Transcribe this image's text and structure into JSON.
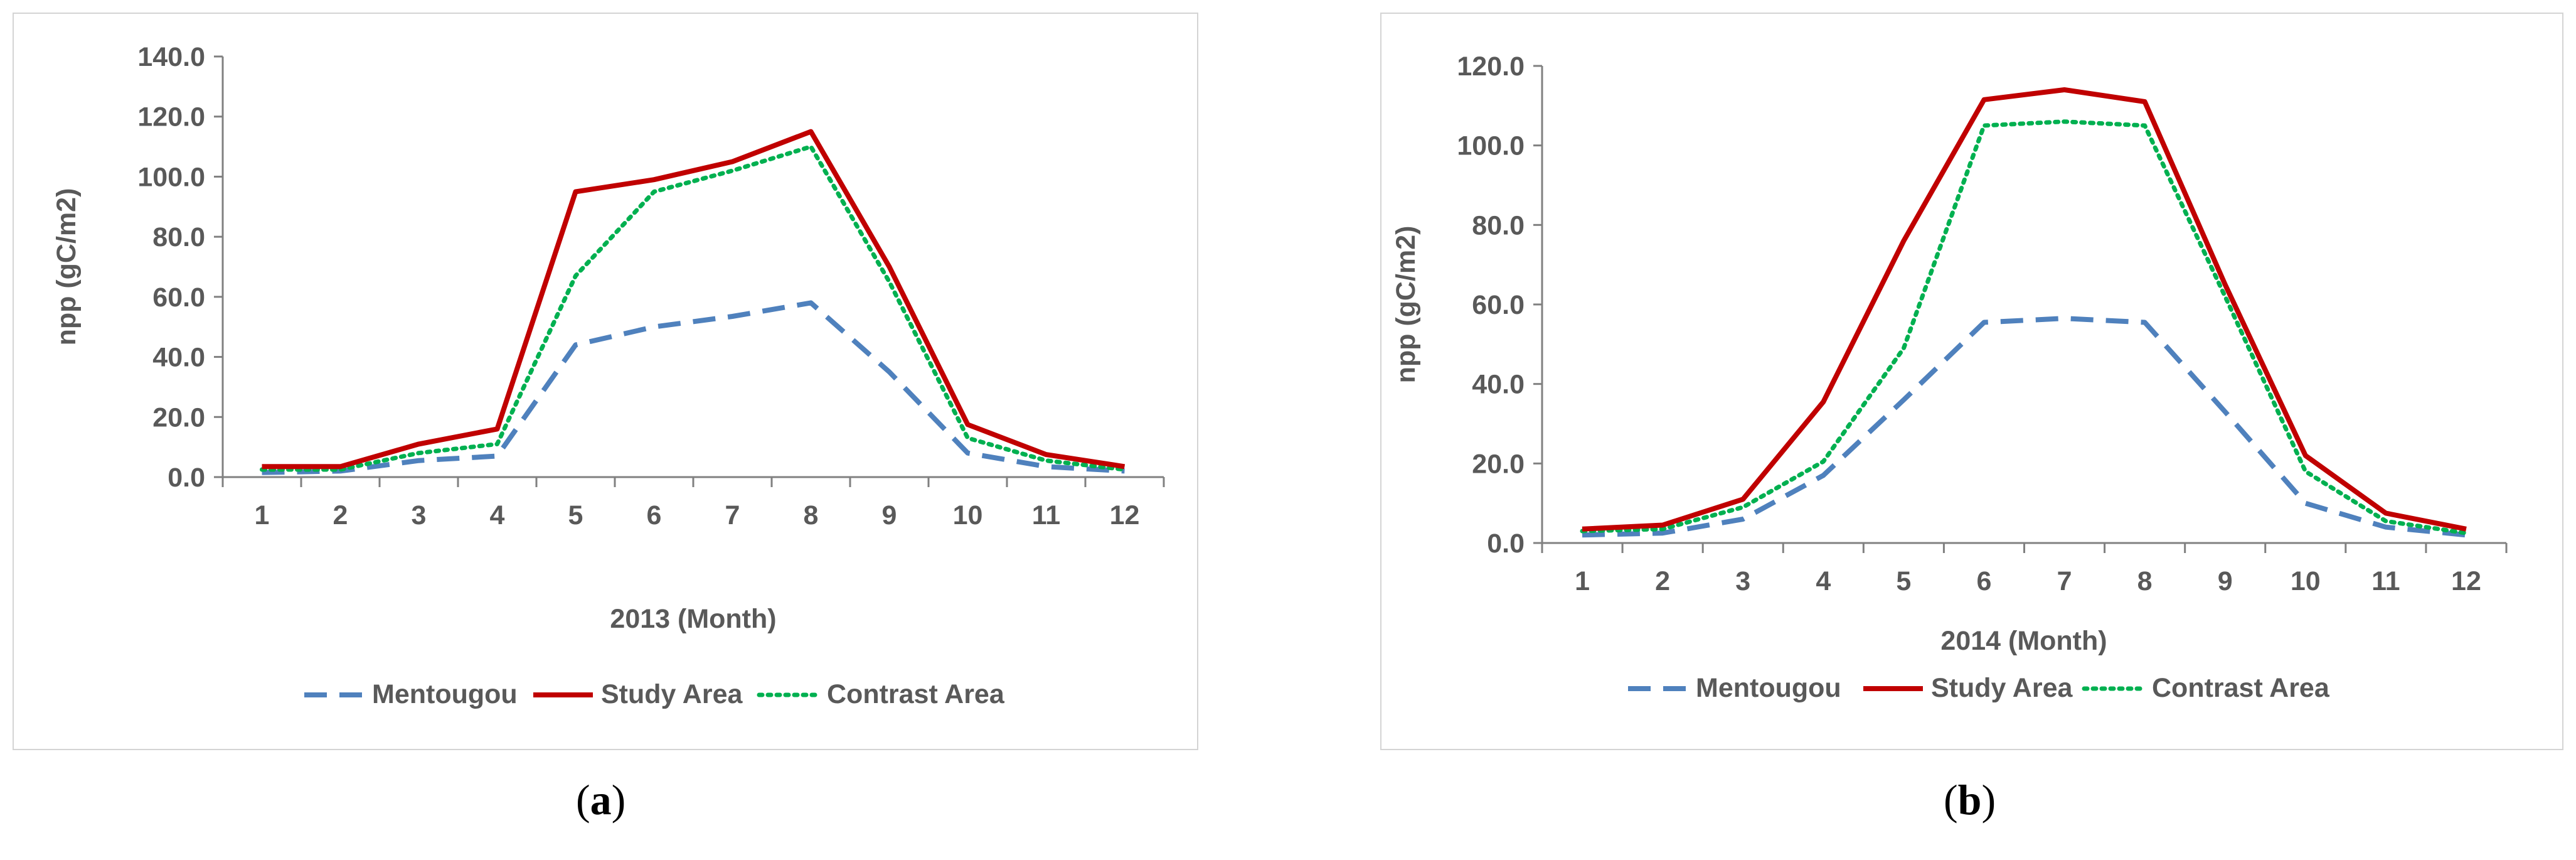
{
  "captions": {
    "a": "a",
    "b": "b"
  },
  "chart_data": [
    {
      "type": "line",
      "categories": [
        "1",
        "2",
        "3",
        "4",
        "5",
        "6",
        "7",
        "8",
        "9",
        "10",
        "11",
        "12"
      ],
      "xlabel": "2013 (Month)",
      "ylabel": "npp (gC/m2)",
      "ylim": [
        0,
        140
      ],
      "yticks": [
        "0.0",
        "20.0",
        "40.0",
        "60.0",
        "80.0",
        "100.0",
        "120.0",
        "140.0"
      ],
      "legend_position": "bottom",
      "series": [
        {
          "name": "Mentougou",
          "color": "#4f81bd",
          "style": "dashed",
          "values": [
            1.5,
            2.0,
            5.5,
            7.0,
            44.0,
            50.0,
            53.5,
            58.0,
            35.0,
            8.0,
            3.5,
            2.0
          ]
        },
        {
          "name": "Study Area",
          "color": "#c00000",
          "style": "solid",
          "values": [
            3.5,
            3.5,
            11.0,
            16.0,
            95.0,
            99.0,
            105.0,
            115.0,
            70.0,
            17.5,
            7.5,
            3.5
          ]
        },
        {
          "name": "Contrast Area",
          "color": "#00b050",
          "style": "dotted",
          "values": [
            2.5,
            2.5,
            8.0,
            11.0,
            67.0,
            95.0,
            102.0,
            110.0,
            65.0,
            13.0,
            5.5,
            2.5
          ]
        }
      ]
    },
    {
      "type": "line",
      "categories": [
        "1",
        "2",
        "3",
        "4",
        "5",
        "6",
        "7",
        "8",
        "9",
        "10",
        "11",
        "12"
      ],
      "xlabel": "2014 (Month)",
      "ylabel": "npp (gC/m2)",
      "ylim": [
        0,
        120
      ],
      "yticks": [
        "0.0",
        "20.0",
        "40.0",
        "60.0",
        "80.0",
        "100.0",
        "120.0"
      ],
      "legend_position": "bottom",
      "series": [
        {
          "name": "Mentougou",
          "color": "#4f81bd",
          "style": "dashed",
          "values": [
            2.0,
            2.5,
            6.0,
            17.0,
            36.0,
            55.5,
            56.5,
            55.5,
            33.0,
            10.0,
            4.0,
            2.0
          ]
        },
        {
          "name": "Study Area",
          "color": "#c00000",
          "style": "solid",
          "values": [
            3.5,
            4.5,
            11.0,
            35.5,
            76.0,
            111.5,
            114.0,
            111.0,
            65.0,
            22.0,
            7.5,
            3.5
          ]
        },
        {
          "name": "Contrast Area",
          "color": "#00b050",
          "style": "dotted",
          "values": [
            3.0,
            3.5,
            9.0,
            20.5,
            49.0,
            105.0,
            106.0,
            105.0,
            62.0,
            18.0,
            5.5,
            2.5
          ]
        }
      ]
    }
  ]
}
